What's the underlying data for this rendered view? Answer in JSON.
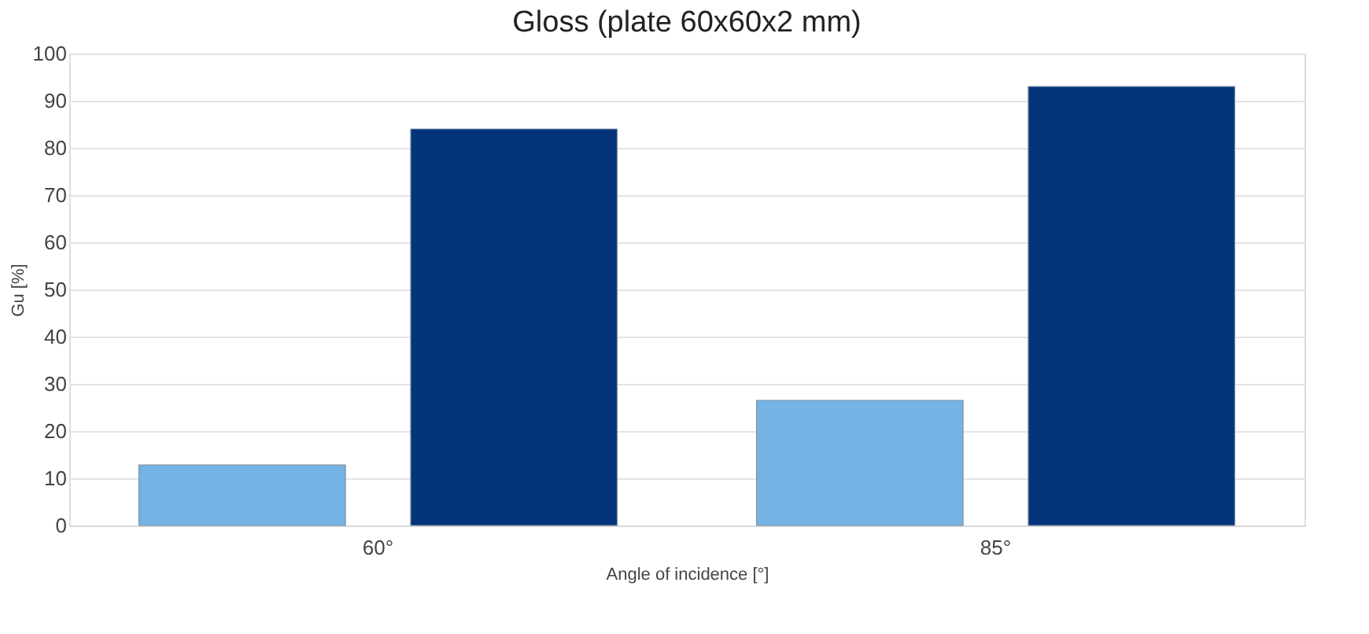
{
  "chart_data": {
    "type": "bar",
    "title": "Gloss (plate 60x60x2 mm)",
    "xlabel": "Angle of incidence [°]",
    "ylabel": "Gu [%]",
    "categories": [
      "60°",
      "85°"
    ],
    "series": [
      {
        "color": "#74b3e4",
        "values": [
          12.8,
          26.5
        ]
      },
      {
        "color": "#04347a",
        "values": [
          84,
          93
        ]
      }
    ],
    "ylim": [
      0,
      100
    ],
    "yticks": [
      0,
      10,
      20,
      30,
      40,
      50,
      60,
      70,
      80,
      90,
      100
    ],
    "grid": "y",
    "legend": false
  }
}
